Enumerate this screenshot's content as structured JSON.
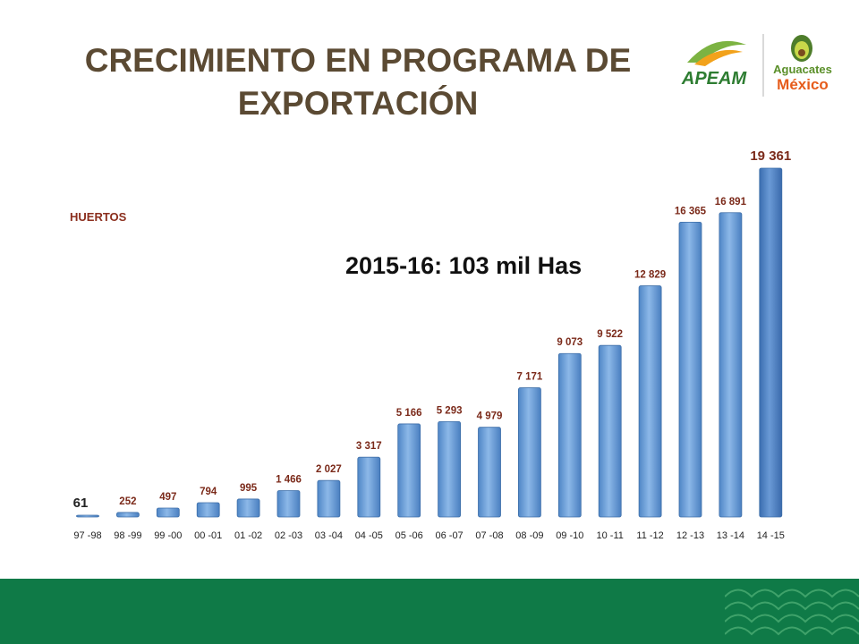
{
  "header": {
    "title_line1": "CRECIMIENTO EN PROGRAMA DE",
    "title_line2": "EXPORTACIÓN"
  },
  "logos": {
    "apeam": "APEAM",
    "aguacates_line1": "Aguacates",
    "aguacates_line2": "México"
  },
  "chart_data": {
    "type": "bar",
    "categories": [
      "97 -98",
      "98 -99",
      "99 -00",
      "00 -01",
      "01 -02",
      "02 -03",
      "03 -04",
      "04 -05",
      "05 -06",
      "06 -07",
      "07 -08",
      "08 -09",
      "09 -10",
      "10 -11",
      "11 -12",
      "12 -13",
      "13 -14",
      "14 -15"
    ],
    "values": [
      61,
      252,
      497,
      794,
      995,
      1466,
      2027,
      3317,
      5166,
      5293,
      4979,
      7171,
      9073,
      9522,
      12829,
      16365,
      16891,
      19361
    ],
    "data_labels": [
      "61",
      "252",
      "497",
      "794",
      "995",
      "1 466",
      "2 027",
      "3 317",
      "5 166",
      "5 293",
      "4 979",
      "7 171",
      "9 073",
      "9 522",
      "12 829",
      "16 365",
      "16 891",
      "19 361"
    ],
    "series_label": "HUERTOS",
    "annotation": "2015-16: 103 mil Has",
    "ylim": [
      0,
      19361
    ],
    "grid": false,
    "colors": {
      "bar": "#6fa0d8",
      "bar_last": "#4a7fc4",
      "data_label": "#7b2a1a",
      "axis_label": "#222222"
    }
  }
}
